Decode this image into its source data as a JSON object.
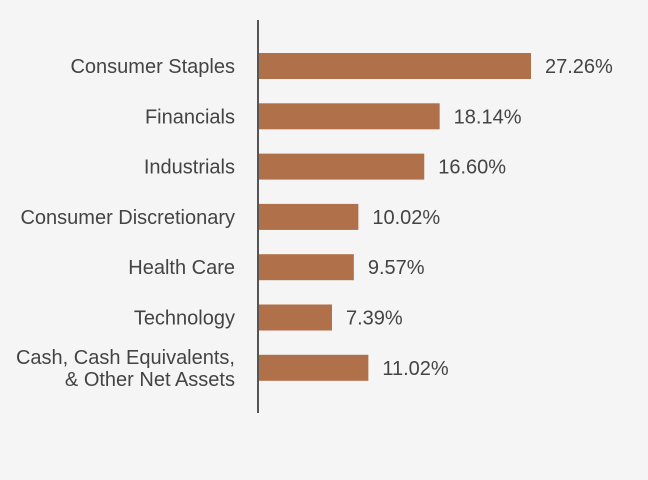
{
  "chart_data": {
    "type": "bar",
    "orientation": "horizontal",
    "title": "",
    "xlabel": "",
    "ylabel": "",
    "categories": [
      [
        "Consumer Staples"
      ],
      [
        "Financials"
      ],
      [
        "Industrials"
      ],
      [
        "Consumer Discretionary"
      ],
      [
        "Health Care"
      ],
      [
        "Technology"
      ],
      [
        "Cash, Cash Equivalents,",
        "& Other Net Assets"
      ]
    ],
    "values": [
      27.26,
      18.14,
      16.6,
      10.02,
      9.57,
      7.39,
      11.02
    ],
    "value_labels": [
      "27.26%",
      "18.14%",
      "16.60%",
      "10.02%",
      "9.57%",
      "7.39%",
      "11.02%"
    ],
    "xlim": [
      0,
      30
    ],
    "grid": false,
    "legend": "none",
    "bar_color": "#b07049",
    "axis_color": "#555555",
    "text_color": "#444444"
  }
}
